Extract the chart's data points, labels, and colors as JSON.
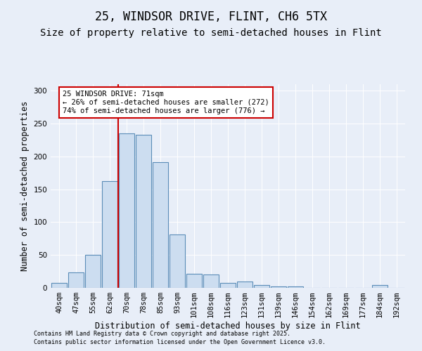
{
  "title1": "25, WINDSOR DRIVE, FLINT, CH6 5TX",
  "title2": "Size of property relative to semi-detached houses in Flint",
  "xlabel": "Distribution of semi-detached houses by size in Flint",
  "ylabel": "Number of semi-detached properties",
  "categories": [
    "40sqm",
    "47sqm",
    "55sqm",
    "62sqm",
    "70sqm",
    "78sqm",
    "85sqm",
    "93sqm",
    "101sqm",
    "108sqm",
    "116sqm",
    "123sqm",
    "131sqm",
    "139sqm",
    "146sqm",
    "154sqm",
    "162sqm",
    "169sqm",
    "177sqm",
    "184sqm",
    "192sqm"
  ],
  "values": [
    8,
    24,
    50,
    163,
    235,
    233,
    191,
    81,
    21,
    20,
    7,
    10,
    4,
    2,
    2,
    0,
    0,
    0,
    0,
    4,
    0
  ],
  "bar_color": "#ccddf0",
  "bar_edge_color": "#5b8db8",
  "vline_x": 3.5,
  "vline_color": "#cc0000",
  "ylim": [
    0,
    310
  ],
  "yticks": [
    0,
    50,
    100,
    150,
    200,
    250,
    300
  ],
  "annotation_text": "25 WINDSOR DRIVE: 71sqm\n← 26% of semi-detached houses are smaller (272)\n74% of semi-detached houses are larger (776) →",
  "annotation_box_color": "#ffffff",
  "annotation_box_edge": "#cc0000",
  "background_color": "#e8eef8",
  "footer1": "Contains HM Land Registry data © Crown copyright and database right 2025.",
  "footer2": "Contains public sector information licensed under the Open Government Licence v3.0.",
  "title_fontsize": 12,
  "subtitle_fontsize": 10,
  "label_fontsize": 8.5,
  "tick_fontsize": 7.5,
  "footer_fontsize": 6
}
